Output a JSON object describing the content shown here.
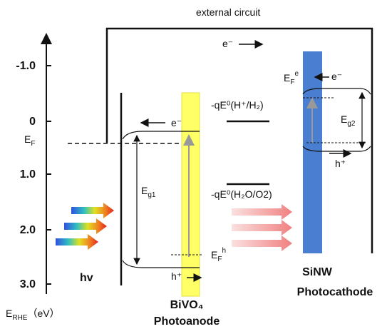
{
  "axis": {
    "label": {
      "main": "E",
      "sub": "RHE",
      "unit": "（eV）"
    },
    "ticks": [
      "-1.0",
      "0",
      "1.0",
      "2.0",
      "3.0"
    ]
  },
  "circuit": {
    "label": "external circuit",
    "electron": "e⁻"
  },
  "fermi": {
    "main": "E",
    "sub": "F"
  },
  "light": "hv",
  "photoanode": {
    "electron": "e⁻",
    "gap": {
      "main": "E",
      "sub": "g1"
    },
    "fermi": {
      "main": "E",
      "sub": "F",
      "sup": "h"
    },
    "hole": "h⁺",
    "material": "BiVO₄",
    "name": "Photoanode"
  },
  "levels": [
    "-qE⁰(H⁺/H₂)",
    "-qE⁰(H₂O/O2)"
  ],
  "photocathode": {
    "electron": "e⁻",
    "gap": {
      "main": "E",
      "sub": "g2"
    },
    "fermi": {
      "main": "E",
      "sub": "F",
      "sup": "e"
    },
    "hole": "h⁺",
    "material": "SiNW",
    "name": "Photocathode"
  }
}
